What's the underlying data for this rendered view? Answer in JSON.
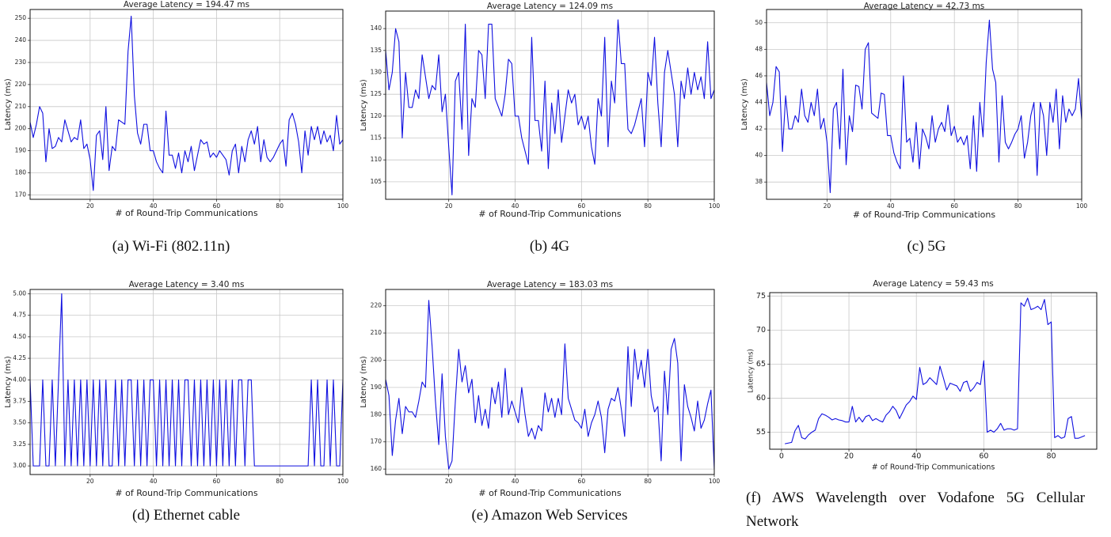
{
  "chart_data": [
    {
      "type": "line",
      "title": "Average Latency =  194.47 ms",
      "xlabel": "# of Round-Trip Communications",
      "ylabel": "Latency (ms)",
      "caption": "(a) Wi-Fi (802.11n)",
      "color": "#1010e0",
      "grid": true,
      "x": [
        1,
        2,
        3,
        4,
        5,
        6,
        7,
        8,
        9,
        10,
        11,
        12,
        13,
        14,
        15,
        16,
        17,
        18,
        19,
        20,
        21,
        22,
        23,
        24,
        25,
        26,
        27,
        28,
        29,
        30,
        31,
        32,
        33,
        34,
        35,
        36,
        37,
        38,
        39,
        40,
        41,
        42,
        43,
        44,
        45,
        46,
        47,
        48,
        49,
        50,
        51,
        52,
        53,
        54,
        55,
        56,
        57,
        58,
        59,
        60,
        61,
        62,
        63,
        64,
        65,
        66,
        67,
        68,
        69,
        70,
        71,
        72,
        73,
        74,
        75,
        76,
        77,
        78,
        79,
        80,
        81,
        82,
        83,
        84,
        85,
        86,
        87,
        88,
        89,
        90,
        91,
        92,
        93,
        94,
        95,
        96,
        97,
        98,
        99,
        100
      ],
      "values": [
        203,
        196,
        202,
        210,
        207,
        185,
        200,
        191,
        192,
        196,
        194,
        204,
        199,
        194,
        196,
        195,
        204,
        191,
        193,
        186,
        172,
        197,
        199,
        186,
        210,
        181,
        192,
        190,
        204,
        203,
        202,
        235,
        251,
        215,
        198,
        193,
        202,
        202,
        190,
        190,
        185,
        182,
        180,
        208,
        188,
        188,
        182,
        189,
        180,
        190,
        185,
        192,
        181,
        188,
        195,
        193,
        194,
        187,
        189,
        187,
        190,
        188,
        186,
        179,
        190,
        193,
        180,
        192,
        185,
        195,
        199,
        193,
        201,
        185,
        195,
        187,
        185,
        187,
        190,
        193,
        195,
        183,
        204,
        207,
        202,
        194,
        180,
        199,
        188,
        201,
        195,
        201,
        193,
        199,
        194,
        197,
        190,
        206,
        193,
        195
      ],
      "xlim": [
        1,
        100
      ],
      "xticks": [
        20,
        40,
        60,
        80,
        100
      ],
      "ylim": [
        168,
        254
      ],
      "yticks": [
        170,
        180,
        190,
        200,
        210,
        220,
        230,
        240,
        250
      ]
    },
    {
      "type": "line",
      "title": "Average Latency =  124.09 ms",
      "xlabel": "# of Round-Trip Communications",
      "ylabel": "Latency (ms)",
      "caption": "(b) 4G",
      "color": "#1010e0",
      "grid": true,
      "x": [
        1,
        2,
        3,
        4,
        5,
        6,
        7,
        8,
        9,
        10,
        11,
        12,
        13,
        14,
        15,
        16,
        17,
        18,
        19,
        20,
        21,
        22,
        23,
        24,
        25,
        26,
        27,
        28,
        29,
        30,
        31,
        32,
        33,
        34,
        35,
        36,
        37,
        38,
        39,
        40,
        41,
        42,
        43,
        44,
        45,
        46,
        47,
        48,
        49,
        50,
        51,
        52,
        53,
        54,
        55,
        56,
        57,
        58,
        59,
        60,
        61,
        62,
        63,
        64,
        65,
        66,
        67,
        68,
        69,
        70,
        71,
        72,
        73,
        74,
        75,
        76,
        77,
        78,
        79,
        80,
        81,
        82,
        83,
        84,
        85,
        86,
        87,
        88,
        89,
        90,
        91,
        92,
        93,
        94,
        95,
        96,
        97,
        98,
        99,
        100
      ],
      "values": [
        135,
        126,
        130,
        140,
        137,
        115,
        130,
        122,
        122,
        126,
        124,
        134,
        129,
        124,
        127,
        126,
        134,
        121,
        125,
        113,
        102,
        128,
        130,
        117,
        141,
        111,
        124,
        122,
        135,
        134,
        124,
        141,
        141,
        124,
        122,
        120,
        125,
        133,
        132,
        120,
        120,
        115,
        112,
        109,
        138,
        119,
        119,
        112,
        128,
        108,
        123,
        116,
        126,
        114,
        120,
        126,
        123,
        125,
        118,
        120,
        117,
        120,
        113,
        109,
        124,
        120,
        138,
        113,
        128,
        123,
        142,
        132,
        132,
        117,
        116,
        118,
        121,
        124,
        113,
        130,
        127,
        138,
        123,
        113,
        130,
        135,
        130,
        125,
        113,
        128,
        124,
        131,
        125,
        130,
        126,
        129,
        124,
        137,
        124,
        126
      ],
      "xlim": [
        1,
        100
      ],
      "xticks": [
        20,
        40,
        60,
        80,
        100
      ],
      "ylim": [
        101,
        144
      ],
      "yticks": [
        105,
        110,
        115,
        120,
        125,
        130,
        135,
        140
      ]
    },
    {
      "type": "line",
      "title": "Average Latency =  42.73 ms",
      "xlabel": "# of Round-Trip Communications",
      "ylabel": "Latency (ms)",
      "caption": "(c) 5G",
      "color": "#1010e0",
      "grid": true,
      "x": [
        1,
        2,
        3,
        4,
        5,
        6,
        7,
        8,
        9,
        10,
        11,
        12,
        13,
        14,
        15,
        16,
        17,
        18,
        19,
        20,
        21,
        22,
        23,
        24,
        25,
        26,
        27,
        28,
        29,
        30,
        31,
        32,
        33,
        34,
        35,
        36,
        37,
        38,
        39,
        40,
        41,
        42,
        43,
        44,
        45,
        46,
        47,
        48,
        49,
        50,
        51,
        52,
        53,
        54,
        55,
        56,
        57,
        58,
        59,
        60,
        61,
        62,
        63,
        64,
        65,
        66,
        67,
        68,
        69,
        70,
        71,
        72,
        73,
        74,
        75,
        76,
        77,
        78,
        79,
        80,
        81,
        82,
        83,
        84,
        85,
        86,
        87,
        88,
        89,
        90,
        91,
        92,
        93,
        94,
        95,
        96,
        97,
        98,
        99,
        100
      ],
      "values": [
        45.5,
        43,
        44,
        46.7,
        46.3,
        40.3,
        44.5,
        42,
        42,
        43,
        42.5,
        45,
        43,
        42.5,
        44,
        43,
        45,
        42,
        42.8,
        41,
        37.2,
        43.5,
        44,
        40.5,
        46.5,
        39.3,
        43,
        41.8,
        45.3,
        45.2,
        43.5,
        48,
        48.5,
        43.2,
        43,
        42.8,
        44.7,
        44.6,
        41.5,
        41.5,
        40.2,
        39.5,
        39,
        46,
        41,
        41.3,
        39.5,
        42.5,
        39,
        42,
        41.4,
        40.5,
        43,
        41,
        42,
        42.5,
        41.8,
        43.8,
        41.5,
        42.2,
        41,
        41.4,
        40.8,
        41.5,
        39,
        43,
        38.8,
        44,
        41.4,
        47,
        50.2,
        46.5,
        45.5,
        39.5,
        44.5,
        41,
        40.5,
        41,
        41.6,
        42,
        43,
        39.8,
        41,
        43,
        44,
        38.5,
        44,
        43,
        40,
        44,
        42.5,
        45,
        40.5,
        44.5,
        42.5,
        43.5,
        43,
        43.5,
        45.8,
        42.7
      ],
      "xlim": [
        1,
        100
      ],
      "xticks": [
        20,
        40,
        60,
        80,
        100
      ],
      "ylim": [
        36.7,
        51
      ],
      "yticks": [
        38,
        40,
        42,
        44,
        46,
        48,
        50
      ]
    },
    {
      "type": "line",
      "title": "Average Latency =  3.40 ms",
      "xlabel": "# of Round-Trip Communications",
      "ylabel": "Latency (ms)",
      "caption": "(d) Ethernet cable",
      "color": "#1010e0",
      "grid": true,
      "x": [
        1,
        2,
        3,
        4,
        5,
        6,
        7,
        8,
        9,
        10,
        11,
        12,
        13,
        14,
        15,
        16,
        17,
        18,
        19,
        20,
        21,
        22,
        23,
        24,
        25,
        26,
        27,
        28,
        29,
        30,
        31,
        32,
        33,
        34,
        35,
        36,
        37,
        38,
        39,
        40,
        41,
        42,
        43,
        44,
        45,
        46,
        47,
        48,
        49,
        50,
        51,
        52,
        53,
        54,
        55,
        56,
        57,
        58,
        59,
        60,
        61,
        62,
        63,
        64,
        65,
        66,
        67,
        68,
        69,
        70,
        71,
        72,
        73,
        74,
        75,
        76,
        77,
        78,
        79,
        80,
        81,
        82,
        83,
        84,
        85,
        86,
        87,
        88,
        89,
        90,
        91,
        92,
        93,
        94,
        95,
        96,
        97,
        98,
        99,
        100
      ],
      "values": [
        4,
        3,
        3,
        3,
        4,
        3,
        3,
        4,
        3,
        4,
        5,
        3,
        4,
        3,
        4,
        3,
        4,
        3,
        4,
        3,
        4,
        3,
        4,
        3,
        4,
        3,
        3,
        4,
        3,
        4,
        3,
        4,
        4,
        3,
        4,
        3,
        4,
        3,
        4,
        4,
        3,
        4,
        3,
        4,
        3,
        4,
        3,
        4,
        3,
        4,
        4,
        3,
        4,
        3,
        4,
        3,
        4,
        3,
        4,
        3,
        4,
        3,
        4,
        3,
        4,
        3,
        4,
        4,
        3,
        4,
        4,
        3,
        3,
        3,
        3,
        3,
        3,
        3,
        3,
        3,
        3,
        3,
        3,
        3,
        3,
        3,
        3,
        3,
        3,
        4,
        3,
        4,
        3,
        3,
        4,
        3,
        4,
        3,
        3,
        4
      ],
      "xlim": [
        1,
        100
      ],
      "xticks": [
        20,
        40,
        60,
        80,
        100
      ],
      "ylim": [
        2.9,
        5.05
      ],
      "yticks": [
        {
          "value": 3,
          "label": "3.00"
        },
        {
          "value": 3.25,
          "label": "3.25"
        },
        {
          "value": 3.5,
          "label": "3.50"
        },
        {
          "value": 3.75,
          "label": "3.75"
        },
        {
          "value": 4,
          "label": "4.00"
        },
        {
          "value": 4.25,
          "label": "4.25"
        },
        {
          "value": 4.5,
          "label": "4.50"
        },
        {
          "value": 4.75,
          "label": "4.75"
        },
        {
          "value": 5,
          "label": "5.00"
        }
      ]
    },
    {
      "type": "line",
      "title": "Average Latency =  183.03 ms",
      "xlabel": "# of Round-Trip Communications",
      "ylabel": "Latency (ms)",
      "caption": "(e) Amazon Web Services",
      "color": "#1010e0",
      "grid": true,
      "x": [
        1,
        2,
        3,
        4,
        5,
        6,
        7,
        8,
        9,
        10,
        11,
        12,
        13,
        14,
        15,
        16,
        17,
        18,
        19,
        20,
        21,
        22,
        23,
        24,
        25,
        26,
        27,
        28,
        29,
        30,
        31,
        32,
        33,
        34,
        35,
        36,
        37,
        38,
        39,
        40,
        41,
        42,
        43,
        44,
        45,
        46,
        47,
        48,
        49,
        50,
        51,
        52,
        53,
        54,
        55,
        56,
        57,
        58,
        59,
        60,
        61,
        62,
        63,
        64,
        65,
        66,
        67,
        68,
        69,
        70,
        71,
        72,
        73,
        74,
        75,
        76,
        77,
        78,
        79,
        80,
        81,
        82,
        83,
        84,
        85,
        86,
        87,
        88,
        89,
        90,
        91,
        92,
        93,
        94,
        95,
        96,
        97,
        98,
        99,
        100
      ],
      "values": [
        193,
        187,
        165,
        178,
        186,
        173,
        183,
        181,
        181,
        179,
        185,
        192,
        190,
        222,
        205,
        185,
        169,
        195,
        172,
        160,
        163,
        185,
        204,
        192,
        198,
        188,
        193,
        177,
        187,
        176,
        182,
        175,
        190,
        184,
        192,
        179,
        197,
        180,
        185,
        181,
        177,
        190,
        180,
        172,
        175,
        171,
        176,
        174,
        188,
        181,
        186,
        179,
        186,
        180,
        206,
        186,
        182,
        178,
        177,
        175,
        182,
        172,
        177,
        180,
        185,
        179,
        166,
        182,
        186,
        185,
        190,
        182,
        172,
        205,
        183,
        204,
        193,
        200,
        190,
        204,
        187,
        181,
        183,
        163,
        196,
        180,
        204,
        208,
        199,
        163,
        191,
        183,
        179,
        174,
        185,
        175,
        178,
        184,
        189,
        160
      ],
      "xlim": [
        1,
        100
      ],
      "xticks": [
        20,
        40,
        60,
        80,
        100
      ],
      "ylim": [
        158,
        226
      ],
      "yticks": [
        160,
        170,
        180,
        190,
        200,
        210,
        220
      ]
    },
    {
      "type": "line",
      "title": "Average Latency = 59.43 ms",
      "xlabel": "# of Round-Trip Communications",
      "ylabel": "Latency (ms)",
      "caption": "(f) AWS Wavelength over Vodafone 5G Cellular Network",
      "color": "#1010e0",
      "grid": true,
      "x": [
        1,
        2,
        3,
        4,
        5,
        6,
        7,
        8,
        9,
        10,
        11,
        12,
        13,
        14,
        15,
        16,
        17,
        18,
        19,
        20,
        21,
        22,
        23,
        24,
        25,
        26,
        27,
        28,
        29,
        30,
        31,
        32,
        33,
        34,
        35,
        36,
        37,
        38,
        39,
        40,
        41,
        42,
        43,
        44,
        45,
        46,
        47,
        48,
        49,
        50,
        51,
        52,
        53,
        54,
        55,
        56,
        57,
        58,
        59,
        60,
        61,
        62,
        63,
        64,
        65,
        66,
        67,
        68,
        69,
        70,
        71,
        72,
        73,
        74,
        75,
        76,
        77,
        78,
        79,
        80,
        81,
        82,
        83,
        84,
        85,
        86,
        87,
        88,
        89,
        90
      ],
      "values": [
        53.3,
        53.4,
        53.5,
        55.2,
        56,
        54.2,
        54,
        54.6,
        55,
        55.3,
        57,
        57.7,
        57.5,
        57.2,
        56.8,
        57,
        56.8,
        56.7,
        56.5,
        56.5,
        58.8,
        56.5,
        57.2,
        56.5,
        57.3,
        57.5,
        56.7,
        57,
        56.7,
        56.5,
        57.5,
        58,
        58.8,
        58.2,
        57,
        58,
        59,
        59.5,
        60.3,
        59.8,
        64.5,
        62,
        62.3,
        63,
        62.5,
        62,
        64.7,
        63,
        61.2,
        62.2,
        62,
        61.8,
        61,
        62.3,
        62.5,
        61,
        61.5,
        62.3,
        62,
        65.5,
        55,
        55.3,
        55,
        55.5,
        56.3,
        55.3,
        55.5,
        55.5,
        55.3,
        55.5,
        74,
        73.5,
        74.7,
        73,
        73.2,
        73.5,
        73,
        74.5,
        70.8,
        71.2,
        54.2,
        54.5,
        54.1,
        54.3,
        57,
        57.3,
        54.1,
        54.1,
        54.3,
        54.5
      ],
      "xlim": [
        -3.5,
        93.5
      ],
      "xticks": [
        0,
        20,
        40,
        60,
        80
      ],
      "ylim": [
        52.5,
        75.5
      ],
      "yticks": [
        55,
        60,
        65,
        70,
        75
      ]
    }
  ]
}
